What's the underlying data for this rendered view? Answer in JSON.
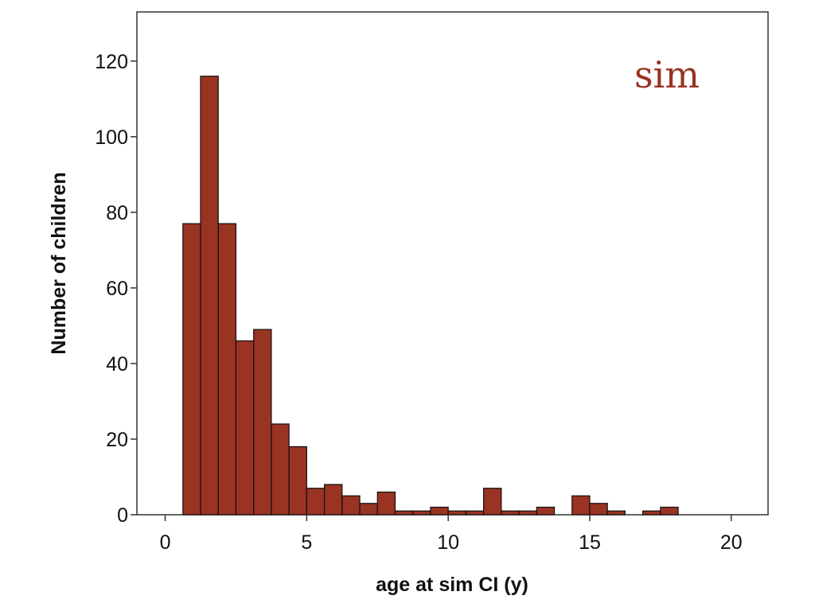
{
  "chart_data": {
    "type": "bar",
    "subtype": "histogram",
    "title": "",
    "xlabel": "age at sim CI (y)",
    "ylabel": "Number of children",
    "annotation": "sim",
    "bar_color": "#993322",
    "annotation_color": "#993322",
    "xlim": [
      -1,
      21.3
    ],
    "ylim": [
      0,
      133
    ],
    "x_ticks": [
      0,
      5,
      10,
      15,
      20
    ],
    "y_ticks": [
      0,
      20,
      40,
      60,
      80,
      100,
      120
    ],
    "grid": false,
    "legend": "none",
    "bins": [
      {
        "x0": 0.625,
        "x1": 1.25,
        "value": 77
      },
      {
        "x0": 1.25,
        "x1": 1.875,
        "value": 116
      },
      {
        "x0": 1.875,
        "x1": 2.5,
        "value": 77
      },
      {
        "x0": 2.5,
        "x1": 3.125,
        "value": 46
      },
      {
        "x0": 3.125,
        "x1": 3.75,
        "value": 49
      },
      {
        "x0": 3.75,
        "x1": 4.375,
        "value": 24
      },
      {
        "x0": 4.375,
        "x1": 5.0,
        "value": 18
      },
      {
        "x0": 5.0,
        "x1": 5.625,
        "value": 7
      },
      {
        "x0": 5.625,
        "x1": 6.25,
        "value": 8
      },
      {
        "x0": 6.25,
        "x1": 6.875,
        "value": 5
      },
      {
        "x0": 6.875,
        "x1": 7.5,
        "value": 3
      },
      {
        "x0": 7.5,
        "x1": 8.125,
        "value": 6
      },
      {
        "x0": 8.125,
        "x1": 8.75,
        "value": 1
      },
      {
        "x0": 8.75,
        "x1": 9.375,
        "value": 1
      },
      {
        "x0": 9.375,
        "x1": 10.0,
        "value": 2
      },
      {
        "x0": 10.0,
        "x1": 10.625,
        "value": 1
      },
      {
        "x0": 10.625,
        "x1": 11.25,
        "value": 1
      },
      {
        "x0": 11.25,
        "x1": 11.875,
        "value": 7
      },
      {
        "x0": 11.875,
        "x1": 12.5,
        "value": 1
      },
      {
        "x0": 12.5,
        "x1": 13.125,
        "value": 1
      },
      {
        "x0": 13.125,
        "x1": 13.75,
        "value": 2
      },
      {
        "x0": 14.375,
        "x1": 15.0,
        "value": 5
      },
      {
        "x0": 15.0,
        "x1": 15.625,
        "value": 3
      },
      {
        "x0": 15.625,
        "x1": 16.25,
        "value": 1
      },
      {
        "x0": 16.875,
        "x1": 17.5,
        "value": 1
      },
      {
        "x0": 17.5,
        "x1": 18.125,
        "value": 2
      }
    ]
  }
}
